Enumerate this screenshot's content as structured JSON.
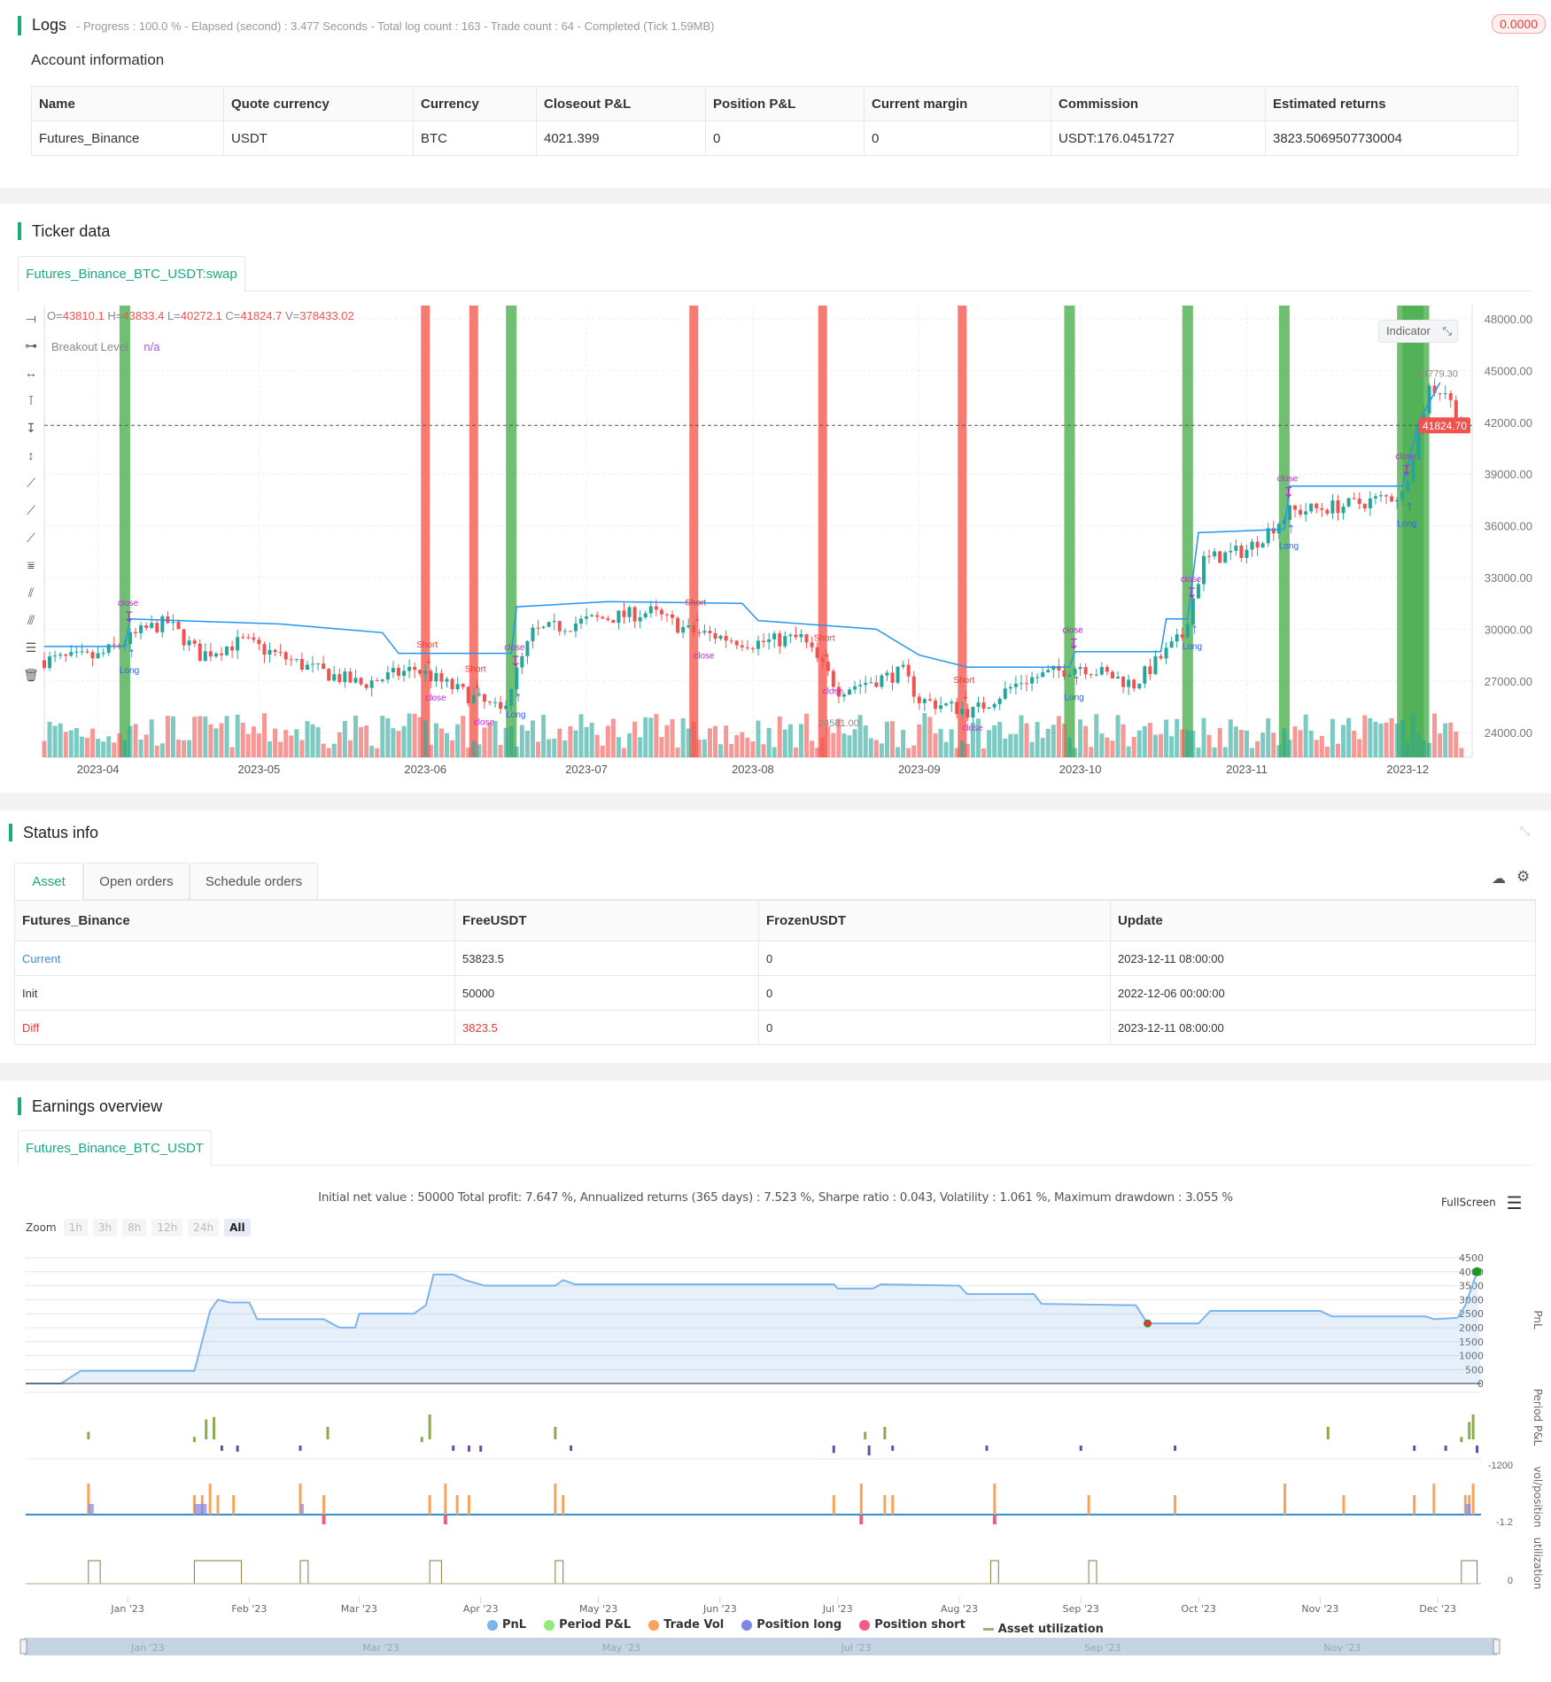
{
  "logs": {
    "title": "Logs",
    "status": "- Progress : 100.0 % - Elapsed (second) : 3.477  Seconds - Total log count : 163 - Trade count : 64 - Completed (Tick 1.59MB)",
    "badge": "0.0000"
  },
  "account": {
    "title": "Account information",
    "headers": [
      "Name",
      "Quote currency",
      "Currency",
      "Closeout P&L",
      "Position P&L",
      "Current margin",
      "Commission",
      "Estimated returns"
    ],
    "row": [
      "Futures_Binance",
      "USDT",
      "BTC",
      "4021.399",
      "0",
      "0",
      "USDT:176.0451727",
      "3823.5069507730004"
    ]
  },
  "ticker": {
    "title": "Ticker data",
    "tab": "Futures_Binance_BTC_USDT:swap",
    "ohlc": {
      "o_label": "O=",
      "o": "43810.1",
      "h_label": "H=",
      "h": "43833.4",
      "l_label": "L=",
      "l": "40272.1",
      "c_label": "C=",
      "c": "41824.7",
      "v_label": "V=",
      "v": "378433.02"
    },
    "indicator_name": "Breakout Level",
    "indicator_value": "n/a",
    "indicator_button": "Indicator",
    "last_price": "41824.70",
    "high_marker": "44779.30",
    "low_marker": "24581.00",
    "colors": {
      "up": "#26a69a",
      "down": "#ef5350",
      "breakout": "#2196f3",
      "long_band": "#4caf50",
      "short_band": "#f44336"
    }
  },
  "chart_data": {
    "type": "candlestick",
    "y_ticks": [
      "48000.00",
      "45000.00",
      "42000.00",
      "39000.00",
      "36000.00",
      "33000.00",
      "30000.00",
      "27000.00",
      "24000.00"
    ],
    "ylim": [
      24000,
      48000
    ],
    "x_ticks": [
      "2023-04",
      "2023-05",
      "2023-06",
      "2023-07",
      "2023-08",
      "2023-09",
      "2023-10",
      "2023-11",
      "2023-12"
    ],
    "price_path": [
      [
        "2023-03-22",
        28200
      ],
      [
        "2023-04-01",
        28400
      ],
      [
        "2023-04-10",
        30000
      ],
      [
        "2023-04-14",
        30400
      ],
      [
        "2023-04-20",
        28500
      ],
      [
        "2023-04-28",
        29300
      ],
      [
        "2023-05-10",
        27800
      ],
      [
        "2023-05-20",
        26800
      ],
      [
        "2023-05-30",
        27700
      ],
      [
        "2023-06-10",
        26000
      ],
      [
        "2023-06-15",
        25200
      ],
      [
        "2023-06-21",
        29800
      ],
      [
        "2023-07-01",
        30500
      ],
      [
        "2023-07-13",
        31000
      ],
      [
        "2023-07-20",
        29900
      ],
      [
        "2023-08-01",
        29200
      ],
      [
        "2023-08-10",
        29500
      ],
      [
        "2023-08-17",
        26500
      ],
      [
        "2023-08-29",
        27500
      ],
      [
        "2023-09-01",
        25900
      ],
      [
        "2023-09-11",
        25200
      ],
      [
        "2023-09-20",
        27000
      ],
      [
        "2023-10-01",
        27900
      ],
      [
        "2023-10-11",
        26800
      ],
      [
        "2023-10-20",
        29600
      ],
      [
        "2023-10-24",
        34000
      ],
      [
        "2023-11-01",
        34600
      ],
      [
        "2023-11-09",
        36800
      ],
      [
        "2023-11-20",
        37200
      ],
      [
        "2023-11-30",
        37800
      ],
      [
        "2023-12-05",
        44000
      ],
      [
        "2023-12-08",
        43800
      ],
      [
        "2023-12-11",
        41800
      ]
    ],
    "breakout_level": [
      [
        "2023-03-22",
        29000
      ],
      [
        "2023-04-06",
        29000
      ],
      [
        "2023-04-07",
        30600
      ],
      [
        "2023-05-05",
        30300
      ],
      [
        "2023-05-24",
        29800
      ],
      [
        "2023-05-27",
        28600
      ],
      [
        "2023-06-17",
        28600
      ],
      [
        "2023-06-18",
        31300
      ],
      [
        "2023-07-05",
        31600
      ],
      [
        "2023-07-30",
        31500
      ],
      [
        "2023-08-02",
        30500
      ],
      [
        "2023-08-24",
        30000
      ],
      [
        "2023-09-01",
        28500
      ],
      [
        "2023-09-10",
        27800
      ],
      [
        "2023-09-29",
        27800
      ],
      [
        "2023-09-30",
        28700
      ],
      [
        "2023-10-16",
        28700
      ],
      [
        "2023-10-17",
        30600
      ],
      [
        "2023-10-21",
        30600
      ],
      [
        "2023-10-23",
        35600
      ],
      [
        "2023-11-08",
        35800
      ],
      [
        "2023-11-09",
        38300
      ],
      [
        "2023-11-30",
        38300
      ],
      [
        "2023-12-03",
        42000
      ],
      [
        "2023-12-07",
        44300
      ]
    ],
    "long_signals": [
      "2023-04-06",
      "2023-06-17",
      "2023-09-29",
      "2023-10-21",
      "2023-11-08",
      "2023-11-30",
      "2023-12-01",
      "2023-12-02",
      "2023-12-03",
      "2023-12-04"
    ],
    "short_signals": [
      "2023-06-01",
      "2023-06-10",
      "2023-07-21",
      "2023-08-14",
      "2023-09-09"
    ],
    "marker_labels": {
      "long": "Long",
      "short": "Short",
      "close": "close"
    }
  },
  "status": {
    "title": "Status info",
    "tabs": [
      "Asset",
      "Open orders",
      "Schedule orders"
    ],
    "headers": [
      "Futures_Binance",
      "FreeUSDT",
      "FrozenUSDT",
      "Update"
    ],
    "rows": [
      [
        "Current",
        "53823.5",
        "0",
        "2023-12-11 08:00:00"
      ],
      [
        "Init",
        "50000",
        "0",
        "2022-12-06 00:00:00"
      ],
      [
        "Diff",
        "3823.5",
        "0",
        "2023-12-11 08:00:00"
      ]
    ]
  },
  "earnings": {
    "title": "Earnings overview",
    "tab": "Futures_Binance_BTC_USDT",
    "summary": "Initial net value : 50000 Total profit: 7.647 %, Annualized returns (365 days) : 7.523 %, Sharpe ratio : 0.043, Volatility : 1.061 %, Maximum drawdown : 3.055 %",
    "fullscreen": "FullScreen",
    "zoom_label": "Zoom",
    "zoom_options": [
      "1h",
      "3h",
      "8h",
      "12h",
      "24h",
      "All"
    ],
    "zoom_selected": "All",
    "pnl_ticks": [
      "4500",
      "4000",
      "3500",
      "3000",
      "2500",
      "2000",
      "1500",
      "1000",
      "500",
      "0"
    ],
    "axis_titles": [
      "PnL",
      "Period P&L",
      "vol/position",
      "utilization"
    ],
    "period_min": "-1200",
    "vol_min": "-1.2",
    "util_min": "0",
    "x_ticks": [
      "Jan '23",
      "Feb '23",
      "Mar '23",
      "Apr '23",
      "May '23",
      "Jun '23",
      "Jul '23",
      "Aug '23",
      "Sep '23",
      "Oct '23",
      "Nov '23",
      "Dec '23"
    ],
    "nav_ticks": [
      "Jan '23",
      "Mar '23",
      "May '23",
      "Jul '23",
      "Sep '23",
      "Nov '23"
    ],
    "legend": [
      {
        "label": "PnL",
        "color": "#7cb5ec"
      },
      {
        "label": "Period P&L",
        "color": "#90ed7d"
      },
      {
        "label": "Trade Vol",
        "color": "#f7a35c"
      },
      {
        "label": "Position long",
        "color": "#8085e9"
      },
      {
        "label": "Position short",
        "color": "#f15c80"
      },
      {
        "label": "Asset utilization",
        "color": "#b5a97a"
      }
    ],
    "pnl": [
      [
        "2022-12-06",
        0
      ],
      [
        "2022-12-15",
        0
      ],
      [
        "2022-12-20",
        450
      ],
      [
        "2023-01-18",
        450
      ],
      [
        "2023-01-22",
        2600
      ],
      [
        "2023-01-24",
        3000
      ],
      [
        "2023-01-27",
        2900
      ],
      [
        "2023-02-01",
        2900
      ],
      [
        "2023-02-03",
        2300
      ],
      [
        "2023-02-20",
        2300
      ],
      [
        "2023-02-24",
        2000
      ],
      [
        "2023-02-28",
        2000
      ],
      [
        "2023-03-01",
        2500
      ],
      [
        "2023-03-15",
        2500
      ],
      [
        "2023-03-18",
        2800
      ],
      [
        "2023-03-20",
        3900
      ],
      [
        "2023-03-25",
        3900
      ],
      [
        "2023-03-28",
        3700
      ],
      [
        "2023-04-02",
        3500
      ],
      [
        "2023-04-20",
        3500
      ],
      [
        "2023-04-22",
        3700
      ],
      [
        "2023-04-25",
        3550
      ],
      [
        "2023-06-30",
        3550
      ],
      [
        "2023-07-01",
        3400
      ],
      [
        "2023-07-10",
        3400
      ],
      [
        "2023-07-12",
        3550
      ],
      [
        "2023-08-01",
        3500
      ],
      [
        "2023-08-03",
        3200
      ],
      [
        "2023-08-20",
        3200
      ],
      [
        "2023-08-22",
        2850
      ],
      [
        "2023-09-15",
        2800
      ],
      [
        "2023-09-18",
        2150
      ],
      [
        "2023-10-01",
        2150
      ],
      [
        "2023-10-04",
        2600
      ],
      [
        "2023-11-01",
        2600
      ],
      [
        "2023-11-04",
        2400
      ],
      [
        "2023-11-28",
        2400
      ],
      [
        "2023-11-30",
        2300
      ],
      [
        "2023-12-06",
        2350
      ],
      [
        "2023-12-08",
        2800
      ],
      [
        "2023-12-11",
        4000
      ]
    ],
    "period_pnl": [
      [
        "2022-12-22",
        300
      ],
      [
        "2023-01-18",
        100
      ],
      [
        "2023-01-21",
        800
      ],
      [
        "2023-01-23",
        900
      ],
      [
        "2023-01-25",
        -200
      ],
      [
        "2023-01-29",
        -250
      ],
      [
        "2023-02-14",
        -100
      ],
      [
        "2023-02-21",
        500
      ],
      [
        "2023-03-17",
        100
      ],
      [
        "2023-03-19",
        1000
      ],
      [
        "2023-03-25",
        -200
      ],
      [
        "2023-03-29",
        -250
      ],
      [
        "2023-04-01",
        -250
      ],
      [
        "2023-04-20",
        500
      ],
      [
        "2023-04-24",
        -200
      ],
      [
        "2023-06-30",
        -300
      ],
      [
        "2023-07-08",
        300
      ],
      [
        "2023-07-09",
        -400
      ],
      [
        "2023-07-13",
        500
      ],
      [
        "2023-07-15",
        -200
      ],
      [
        "2023-08-08",
        -200
      ],
      [
        "2023-09-01",
        -200
      ],
      [
        "2023-09-25",
        -200
      ],
      [
        "2023-11-03",
        500
      ],
      [
        "2023-11-25",
        -200
      ],
      [
        "2023-12-03",
        -200
      ],
      [
        "2023-12-07",
        100
      ],
      [
        "2023-12-09",
        700
      ],
      [
        "2023-12-10",
        1000
      ],
      [
        "2023-12-11",
        -300
      ]
    ],
    "trade_vol": [
      "2022-12-22",
      "2023-01-18",
      "2023-01-20",
      "2023-01-22",
      "2023-01-24",
      "2023-01-28",
      "2023-02-14",
      "2023-02-20",
      "2023-03-19",
      "2023-03-23",
      "2023-03-26",
      "2023-03-29",
      "2023-04-20",
      "2023-04-22",
      "2023-06-30",
      "2023-07-07",
      "2023-07-13",
      "2023-07-15",
      "2023-08-10",
      "2023-09-03",
      "2023-09-25",
      "2023-10-23",
      "2023-11-07",
      "2023-11-25",
      "2023-11-30",
      "2023-12-08",
      "2023-12-09",
      "2023-12-10"
    ],
    "utilization": [
      [
        "2022-12-22",
        "2022-12-25"
      ],
      [
        "2023-01-18",
        "2023-01-30"
      ],
      [
        "2023-02-14",
        "2023-02-16"
      ],
      [
        "2023-03-19",
        "2023-03-22"
      ],
      [
        "2023-04-20",
        "2023-04-22"
      ],
      [
        "2023-08-09",
        "2023-08-11"
      ],
      [
        "2023-09-03",
        "2023-09-05"
      ],
      [
        "2023-12-07",
        "2023-12-11"
      ]
    ]
  }
}
